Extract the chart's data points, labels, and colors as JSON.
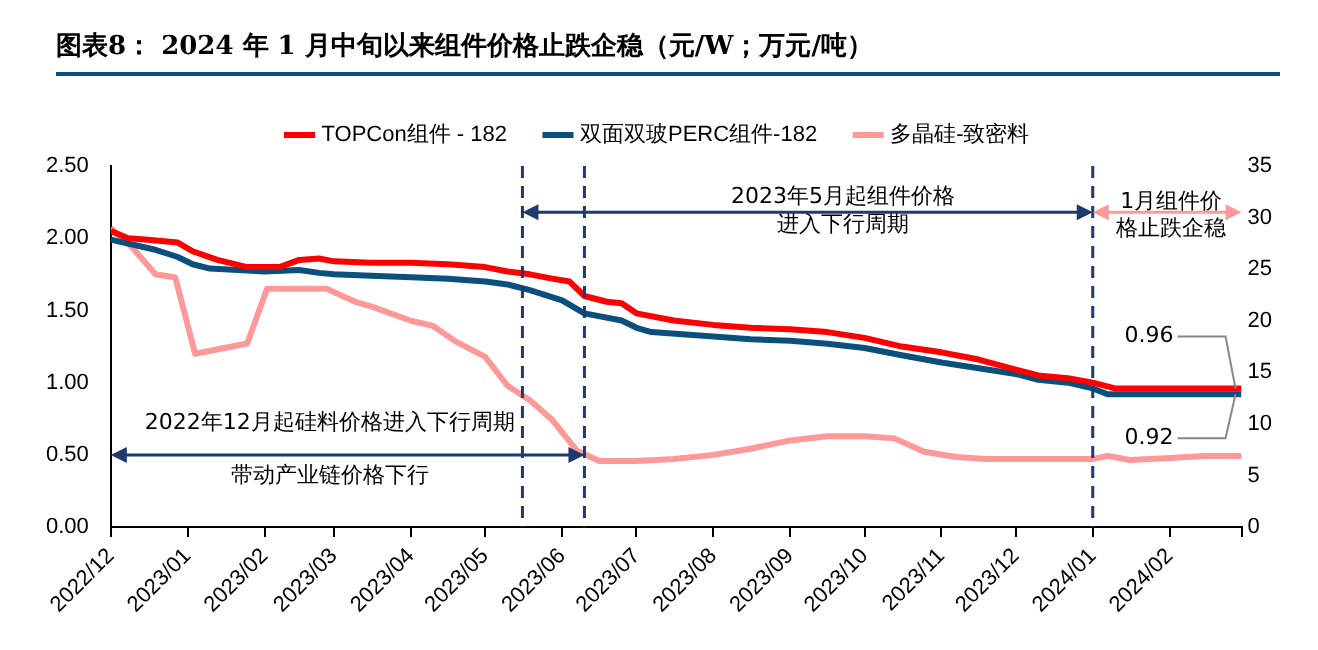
{
  "chart_data": {
    "type": "line",
    "title": "图表8： 2024 年 1 月中旬以来组件价格止跌企稳（元/W；万元/吨）",
    "xlim": [
      "2022-12-01",
      "2024-03-01"
    ],
    "xticks": [
      {
        "value": "2022-12",
        "label": "2022/12"
      },
      {
        "value": "2023-01",
        "label": "2023/01"
      },
      {
        "value": "2023-02",
        "label": "2023/02"
      },
      {
        "value": "2023-03",
        "label": "2023/03"
      },
      {
        "value": "2023-04",
        "label": "2023/04"
      },
      {
        "value": "2023-05",
        "label": "2023/05"
      },
      {
        "value": "2023-06",
        "label": "2023/06"
      },
      {
        "value": "2023-07",
        "label": "2023/07"
      },
      {
        "value": "2023-08",
        "label": "2023/08"
      },
      {
        "value": "2023-09",
        "label": "2023/09"
      },
      {
        "value": "2023-10",
        "label": "2023/10"
      },
      {
        "value": "2023-11",
        "label": "2023/11"
      },
      {
        "value": "2023-12",
        "label": "2023/12"
      },
      {
        "value": "2024-01",
        "label": "2024/01"
      },
      {
        "value": "2024-02",
        "label": "2024/02"
      },
      {
        "value": "2024-03",
        "label": null
      }
    ],
    "ylim": [
      0,
      2.5
    ],
    "yticks": [
      {
        "value": 0,
        "label": "0.00"
      },
      {
        "value": 0.5,
        "label": "0.50"
      },
      {
        "value": 1,
        "label": "1.00"
      },
      {
        "value": 1.5,
        "label": "1.50"
      },
      {
        "value": 2,
        "label": "2.00"
      },
      {
        "value": 2.5,
        "label": "2.50"
      }
    ],
    "y2lim": [
      0,
      35
    ],
    "y2ticks": [
      0,
      5,
      10,
      15,
      20,
      25,
      30,
      35
    ],
    "grid": false,
    "legend": "top",
    "marker": "none",
    "line_style": "solid",
    "series": [
      {
        "name": "TOPCon组件 - 182",
        "color": "#ff0000",
        "x": [
          "2022-12-01",
          "2022-12-08",
          "2022-12-16",
          "2022-12-28",
          "2023-01-03",
          "2023-01-13",
          "2023-01-25",
          "2023-02-07",
          "2023-02-15",
          "2023-02-23",
          "2023-03-01",
          "2023-03-16",
          "2023-04-01",
          "2023-04-16",
          "2023-05-01",
          "2023-05-10",
          "2023-05-19",
          "2023-05-28",
          "2023-06-04",
          "2023-06-10",
          "2023-06-19",
          "2023-06-25",
          "2023-07-01",
          "2023-07-16",
          "2023-08-01",
          "2023-08-16",
          "2023-09-01",
          "2023-09-16",
          "2023-10-01",
          "2023-10-16",
          "2023-11-01",
          "2023-11-16",
          "2023-12-01",
          "2023-12-10",
          "2023-12-22",
          "2024-01-01",
          "2024-01-10",
          "2024-03-01"
        ],
        "values": [
          2.05,
          2.0,
          1.99,
          1.97,
          1.91,
          1.85,
          1.8,
          1.8,
          1.85,
          1.86,
          1.84,
          1.83,
          1.83,
          1.82,
          1.8,
          1.77,
          1.75,
          1.72,
          1.7,
          1.6,
          1.56,
          1.55,
          1.48,
          1.43,
          1.4,
          1.38,
          1.37,
          1.35,
          1.31,
          1.25,
          1.21,
          1.16,
          1.09,
          1.05,
          1.03,
          1.0,
          0.96,
          0.96
        ]
      },
      {
        "name": "双面双玻PERC组件-182",
        "color": "#0b4f7c",
        "x": [
          "2022-12-01",
          "2022-12-19",
          "2022-12-28",
          "2023-01-03",
          "2023-01-10",
          "2023-02-01",
          "2023-02-15",
          "2023-02-23",
          "2023-03-01",
          "2023-03-16",
          "2023-04-01",
          "2023-04-16",
          "2023-05-01",
          "2023-05-10",
          "2023-05-19",
          "2023-06-01",
          "2023-06-10",
          "2023-06-25",
          "2023-07-01",
          "2023-07-07",
          "2023-08-01",
          "2023-08-16",
          "2023-09-01",
          "2023-09-16",
          "2023-10-01",
          "2023-10-16",
          "2023-11-01",
          "2023-11-16",
          "2023-12-01",
          "2023-12-10",
          "2023-12-22",
          "2024-01-01",
          "2024-01-07",
          "2024-03-01"
        ],
        "values": [
          1.99,
          1.92,
          1.87,
          1.82,
          1.79,
          1.77,
          1.78,
          1.76,
          1.75,
          1.74,
          1.73,
          1.72,
          1.7,
          1.68,
          1.64,
          1.57,
          1.48,
          1.43,
          1.38,
          1.35,
          1.32,
          1.3,
          1.29,
          1.27,
          1.24,
          1.19,
          1.14,
          1.1,
          1.06,
          1.02,
          1.0,
          0.96,
          0.92,
          0.92
        ]
      },
      {
        "name": "多晶硅-致密料",
        "color": "#ff9999",
        "axis": "y2",
        "x": [
          "2022-12-01",
          "2022-12-10",
          "2022-12-19",
          "2022-12-27",
          "2023-01-04",
          "2023-01-25",
          "2023-02-02",
          "2023-02-26",
          "2023-03-10",
          "2023-03-16",
          "2023-04-01",
          "2023-04-10",
          "2023-04-19",
          "2023-05-01",
          "2023-05-10",
          "2023-05-19",
          "2023-05-28",
          "2023-06-07",
          "2023-06-16",
          "2023-07-01",
          "2023-07-16",
          "2023-08-01",
          "2023-08-16",
          "2023-09-01",
          "2023-09-16",
          "2023-10-01",
          "2023-10-13",
          "2023-10-25",
          "2023-11-07",
          "2023-11-19",
          "2023-12-01",
          "2023-12-16",
          "2024-01-01",
          "2024-01-07",
          "2024-01-16",
          "2024-02-01",
          "2024-02-15",
          "2024-03-01"
        ],
        "values": [
          29,
          27,
          24.5,
          24.2,
          16.8,
          17.8,
          23.1,
          23.1,
          21.8,
          21.4,
          20,
          19.5,
          18,
          16.5,
          13.7,
          12.3,
          10.4,
          7.4,
          6.4,
          6.4,
          6.6,
          7.0,
          7.6,
          8.4,
          8.8,
          8.8,
          8.6,
          7.3,
          6.8,
          6.6,
          6.6,
          6.6,
          6.6,
          6.9,
          6.5,
          6.7,
          6.9,
          6.9
        ]
      }
    ],
    "ref_lines": [
      {
        "axis": "x",
        "value": "2023-05-16",
        "color": "#1f3a6e",
        "line_style": "dashed"
      },
      {
        "axis": "x",
        "value": "2023-06-10",
        "color": "#1f3a6e",
        "line_style": "dashed"
      },
      {
        "axis": "x",
        "value": "2024-01-01",
        "color": "#1f3a6e",
        "line_style": "dashed"
      }
    ],
    "annotations": [
      "2022年12月起硅料价格进入下行周期",
      "带动产业链价格下行",
      "2023年5月起组件价格",
      "进入下行周期",
      "1月组件价",
      "格止跌企稳",
      {
        "text": "0.96",
        "x": "2024-03-01",
        "y": 0.96
      },
      {
        "text": "0.92",
        "x": "2024-03-01",
        "y": 0.92
      }
    ]
  }
}
